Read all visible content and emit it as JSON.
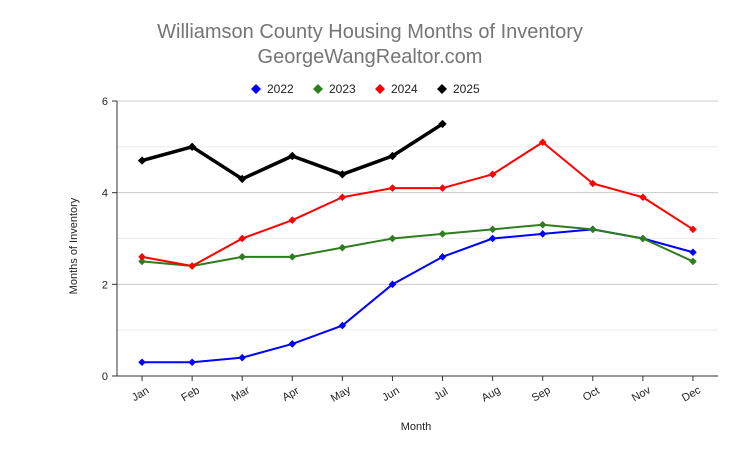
{
  "chart_data": {
    "type": "line",
    "title": "Williamson County Housing Months of Inventory",
    "subtitle": "GeorgeWangRealtor.com",
    "xlabel": "Month",
    "ylabel": "Months of Inventory",
    "categories": [
      "Jan",
      "Feb",
      "Mar",
      "Apr",
      "May",
      "Jun",
      "Jul",
      "Aug",
      "Sep",
      "Oct",
      "Nov",
      "Dec"
    ],
    "ylim": [
      0,
      6
    ],
    "yticks": [
      0,
      2,
      4,
      6
    ],
    "grid": true,
    "legend_position": "top-center",
    "series": [
      {
        "name": "2022",
        "color": "#0000ff",
        "values": [
          0.3,
          0.3,
          0.4,
          0.7,
          1.1,
          2.0,
          2.6,
          3.0,
          3.1,
          3.2,
          3.0,
          2.7
        ]
      },
      {
        "name": "2023",
        "color": "#2e7d1f",
        "values": [
          2.5,
          2.4,
          2.6,
          2.6,
          2.8,
          3.0,
          3.1,
          3.2,
          3.3,
          3.2,
          3.0,
          2.5
        ]
      },
      {
        "name": "2024",
        "color": "#ff0000",
        "values": [
          2.6,
          2.4,
          3.0,
          3.4,
          3.9,
          4.1,
          4.1,
          4.4,
          5.1,
          4.2,
          3.9,
          3.2
        ]
      },
      {
        "name": "2025",
        "color": "#000000",
        "values": [
          4.7,
          5.0,
          4.3,
          4.8,
          4.4,
          4.8,
          5.5,
          null,
          null,
          null,
          null,
          null
        ]
      }
    ]
  }
}
